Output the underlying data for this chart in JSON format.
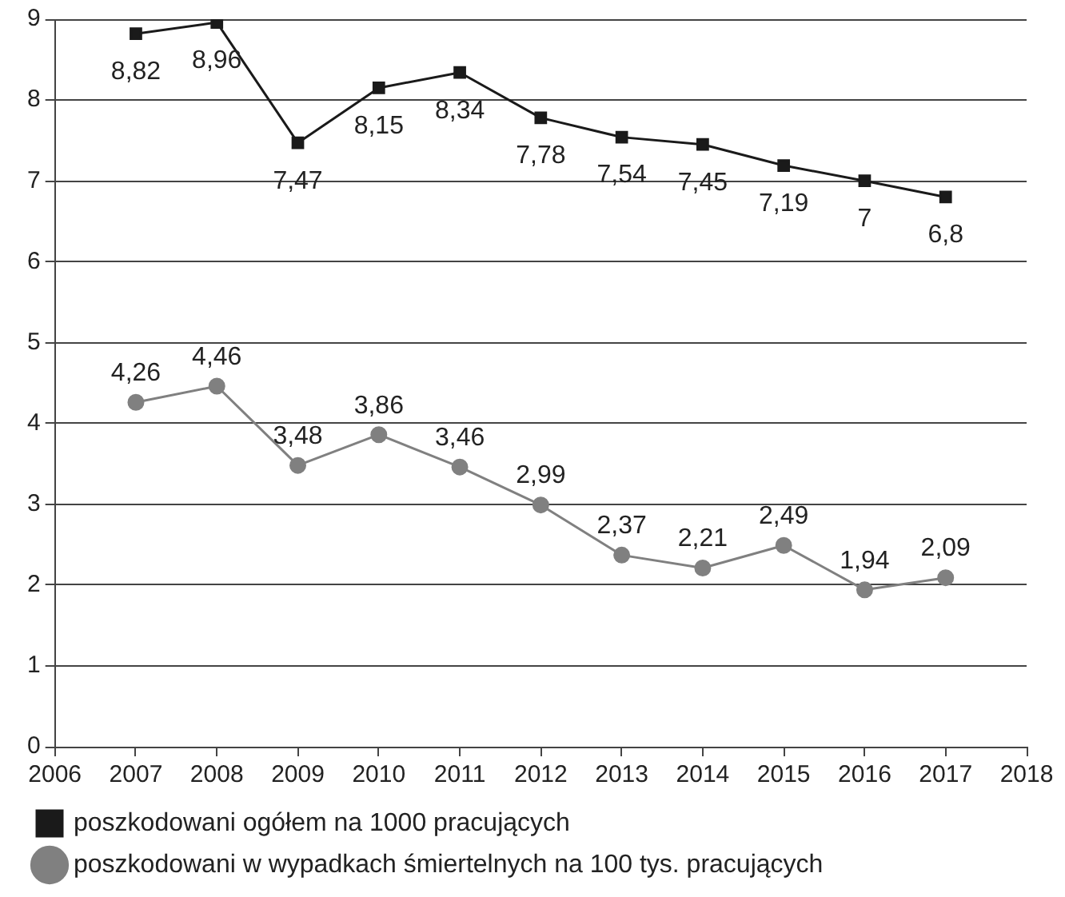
{
  "chart_data": {
    "type": "line",
    "x": [
      2007,
      2008,
      2009,
      2010,
      2011,
      2012,
      2013,
      2014,
      2015,
      2016,
      2017
    ],
    "series": [
      {
        "name": "poszkodowani ogółem na 1000 pracujących",
        "color": "#1a1a1a",
        "marker": "square",
        "values": [
          8.82,
          8.96,
          7.47,
          8.15,
          8.34,
          7.78,
          7.54,
          7.45,
          7.19,
          7,
          6.8
        ],
        "value_labels": [
          "8,82",
          "8,96",
          "7,47",
          "8,15",
          "8,34",
          "7,78",
          "7,54",
          "7,45",
          "7,19",
          "7",
          "6,8"
        ]
      },
      {
        "name": "poszkodowani w wypadkach śmiertelnych na 100 tys. pracujących",
        "color": "#808080",
        "marker": "circle",
        "values": [
          4.26,
          4.46,
          3.48,
          3.86,
          3.46,
          2.99,
          2.37,
          2.21,
          2.49,
          1.94,
          2.09
        ],
        "value_labels": [
          "4,26",
          "4,46",
          "3,48",
          "3,86",
          "3,46",
          "2,99",
          "2,37",
          "2,21",
          "2,49",
          "1,94",
          "2,09"
        ]
      }
    ],
    "xlim": [
      2006,
      2018
    ],
    "xticks": [
      2006,
      2007,
      2008,
      2009,
      2010,
      2011,
      2012,
      2013,
      2014,
      2015,
      2016,
      2017,
      2018
    ],
    "ylim": [
      0,
      9
    ],
    "yticks": [
      0,
      1,
      2,
      3,
      4,
      5,
      6,
      7,
      8,
      9
    ],
    "grid": "y",
    "legend": "bottom",
    "line_style": "solid"
  }
}
